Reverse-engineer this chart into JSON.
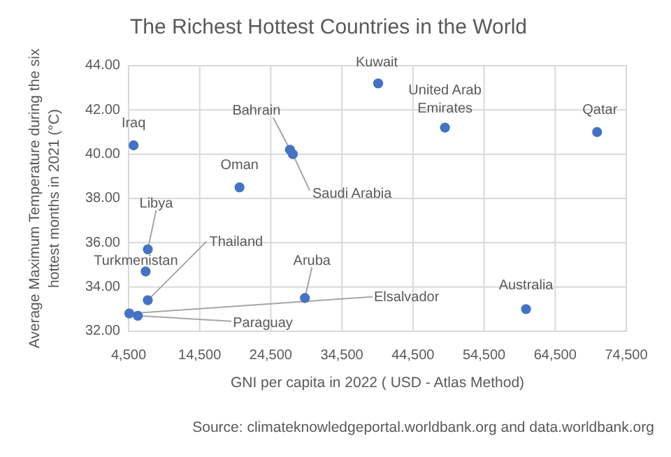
{
  "chart_data": {
    "type": "scatter",
    "title": "The Richest Hottest Countries in the World",
    "xlabel": "GNI per capita in 2022 ( USD - Atlas Method)",
    "ylabel": "Average Maximum Temperature during the six hottest months in 2021 (°C)",
    "annotations": [
      "Source: climateknowledgeportal.worldbank.org  and data.worldbank.org"
    ],
    "xlim": [
      4500,
      74500
    ],
    "xticks": [
      {
        "value": 4500,
        "label": "4,500"
      },
      {
        "value": 14500,
        "label": "14,500"
      },
      {
        "value": 24500,
        "label": "24,500"
      },
      {
        "value": 34500,
        "label": "34,500"
      },
      {
        "value": 44500,
        "label": "44,500"
      },
      {
        "value": 54500,
        "label": "54,500"
      },
      {
        "value": 64500,
        "label": "64,500"
      },
      {
        "value": 74500,
        "label": "74,500"
      }
    ],
    "ylim": [
      32,
      44
    ],
    "yticks": [
      {
        "value": 32,
        "label": "32.00"
      },
      {
        "value": 34,
        "label": "34.00"
      },
      {
        "value": 36,
        "label": "36.00"
      },
      {
        "value": 38,
        "label": "38.00"
      },
      {
        "value": 40,
        "label": "40.00"
      },
      {
        "value": 42,
        "label": "42.00"
      },
      {
        "value": 44,
        "label": "44.00"
      }
    ],
    "grid": true,
    "marker": "circle",
    "series": [
      {
        "name": "Iraq",
        "color": "#4472c4",
        "x": [
          5200
        ],
        "values": [
          40.4
        ]
      },
      {
        "name": "Libya",
        "color": "#4472c4",
        "x": [
          7200
        ],
        "values": [
          35.7
        ]
      },
      {
        "name": "Turkmenistan",
        "color": "#4472c4",
        "x": [
          6900
        ],
        "values": [
          34.7
        ]
      },
      {
        "name": "Thailand",
        "color": "#4472c4",
        "x": [
          7200
        ],
        "values": [
          33.4
        ]
      },
      {
        "name": "Elsalvador",
        "color": "#4472c4",
        "x": [
          4600
        ],
        "values": [
          32.8
        ]
      },
      {
        "name": "Paraguay",
        "color": "#4472c4",
        "x": [
          5800
        ],
        "values": [
          32.7
        ]
      },
      {
        "name": "Oman",
        "color": "#4472c4",
        "x": [
          20100
        ],
        "values": [
          38.5
        ]
      },
      {
        "name": "Bahrain",
        "color": "#4472c4",
        "x": [
          27200
        ],
        "values": [
          40.2
        ]
      },
      {
        "name": "Saudi Arabia",
        "color": "#4472c4",
        "x": [
          27600
        ],
        "values": [
          40.0
        ]
      },
      {
        "name": "Aruba",
        "color": "#4472c4",
        "x": [
          29300
        ],
        "values": [
          33.5
        ]
      },
      {
        "name": "Kuwait",
        "color": "#4472c4",
        "x": [
          39600
        ],
        "values": [
          43.2
        ]
      },
      {
        "name": "United Arab Emirates",
        "color": "#4472c4",
        "x": [
          49000
        ],
        "values": [
          41.2
        ]
      },
      {
        "name": "Qatar",
        "color": "#4472c4",
        "x": [
          70400
        ],
        "values": [
          41.0
        ]
      },
      {
        "name": "Australia",
        "color": "#4472c4",
        "x": [
          60400
        ],
        "values": [
          33.0
        ]
      }
    ]
  }
}
